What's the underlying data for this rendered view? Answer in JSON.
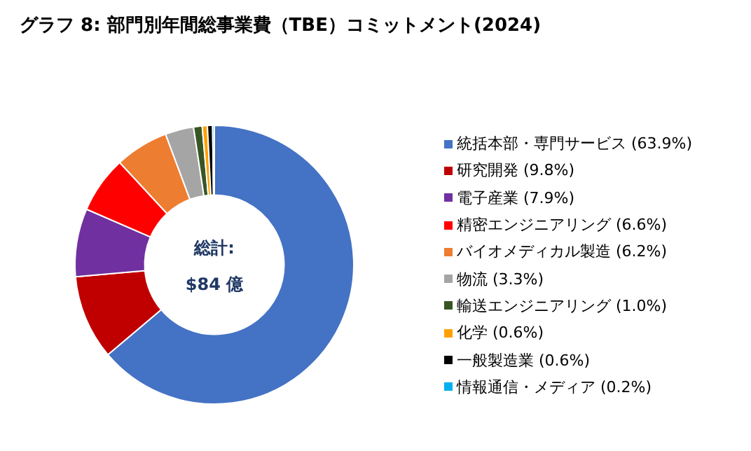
{
  "chart_data": {
    "type": "donut",
    "title": "グラフ 8: 部門別年間総事業費（TBE）コミットメント(2024)",
    "categories": [
      "統括本部・専門サービス (63.9%)",
      "研究開発 (9.8%)",
      "電子産業 (7.9%)",
      "精密エンジニアリング (6.6%)",
      "バイオメディカル製造 (6.2%)",
      "物流 (3.3%)",
      "輸送エンジニアリング (1.0%)",
      "化学 (0.6%)",
      "一般製造業 (0.6%)",
      "情報通信・メディア (0.2%)"
    ],
    "values": [
      63.9,
      9.8,
      7.9,
      6.6,
      6.2,
      3.3,
      1.0,
      0.6,
      0.6,
      0.2
    ],
    "colors": [
      "#4472c4",
      "#c00000",
      "#7030a0",
      "#ff0000",
      "#ed7d31",
      "#a5a5a5",
      "#375623",
      "#ffa000",
      "#000000",
      "#00b0f0"
    ],
    "annotations": [
      "総計:",
      "$84 億"
    ],
    "legend": "right"
  }
}
